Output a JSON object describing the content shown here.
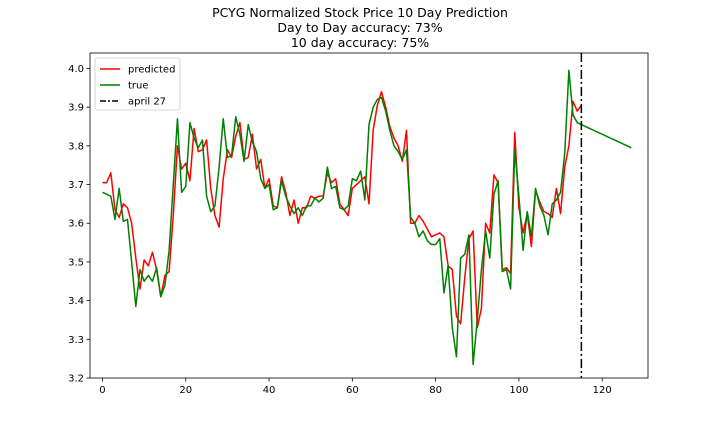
{
  "chart_data": {
    "type": "line",
    "title_lines": [
      "PCYG Normalized Stock Price 10 Day Prediction",
      "Day to Day accuracy: 73%",
      "10 day accuracy: 75%"
    ],
    "xlabel": "",
    "ylabel": "",
    "xlim": [
      -3,
      131
    ],
    "ylim": [
      3.2,
      4.04
    ],
    "x_ticks": [
      0,
      20,
      40,
      60,
      80,
      100,
      120
    ],
    "y_ticks": [
      3.2,
      3.3,
      3.4,
      3.5,
      3.6,
      3.7,
      3.8,
      3.9,
      4.0
    ],
    "y_tick_labels": [
      "3.2",
      "3.3",
      "3.4",
      "3.5",
      "3.6",
      "3.7",
      "3.8",
      "3.9",
      "4.0"
    ],
    "grid": false,
    "legend_position": "top-left",
    "series": [
      {
        "name": "predicted",
        "color": "#ff0000",
        "style": "solid",
        "x_start": 0,
        "values": [
          3.705,
          3.705,
          3.73,
          3.635,
          3.615,
          3.65,
          3.64,
          3.6,
          3.51,
          3.43,
          3.505,
          3.49,
          3.525,
          3.48,
          3.41,
          3.465,
          3.475,
          3.62,
          3.8,
          3.74,
          3.755,
          3.71,
          3.845,
          3.785,
          3.79,
          3.815,
          3.69,
          3.62,
          3.59,
          3.715,
          3.79,
          3.77,
          3.825,
          3.86,
          3.765,
          3.77,
          3.83,
          3.74,
          3.765,
          3.69,
          3.715,
          3.645,
          3.64,
          3.72,
          3.68,
          3.62,
          3.66,
          3.6,
          3.64,
          3.64,
          3.67,
          3.665,
          3.67,
          3.67,
          3.73,
          3.705,
          3.715,
          3.65,
          3.635,
          3.62,
          3.69,
          3.7,
          3.71,
          3.72,
          3.65,
          3.84,
          3.905,
          3.94,
          3.9,
          3.85,
          3.82,
          3.8,
          3.76,
          3.84,
          3.6,
          3.6,
          3.62,
          3.605,
          3.585,
          3.565,
          3.57,
          3.575,
          3.565,
          3.49,
          3.48,
          3.36,
          3.34,
          3.46,
          3.56,
          3.58,
          3.33,
          3.38,
          3.6,
          3.575,
          3.725,
          3.705,
          3.48,
          3.485,
          3.47,
          3.835,
          3.64,
          3.575,
          3.625,
          3.54,
          3.685,
          3.655,
          3.63,
          3.625,
          3.615,
          3.69,
          3.625,
          3.745,
          3.8,
          3.915,
          3.89,
          3.905
        ]
      },
      {
        "name": "true",
        "color": "#008000",
        "style": "solid",
        "x_start": 0,
        "values": [
          3.68,
          3.675,
          3.67,
          3.61,
          3.69,
          3.605,
          3.61,
          3.5,
          3.385,
          3.48,
          3.45,
          3.465,
          3.45,
          3.485,
          3.41,
          3.44,
          3.53,
          3.7,
          3.87,
          3.68,
          3.695,
          3.86,
          3.82,
          3.795,
          3.815,
          3.67,
          3.63,
          3.645,
          3.745,
          3.87,
          3.77,
          3.775,
          3.875,
          3.83,
          3.76,
          3.855,
          3.81,
          3.785,
          3.715,
          3.69,
          3.7,
          3.635,
          3.64,
          3.71,
          3.67,
          3.645,
          3.625,
          3.64,
          3.62,
          3.645,
          3.645,
          3.665,
          3.655,
          3.665,
          3.745,
          3.69,
          3.695,
          3.64,
          3.635,
          3.645,
          3.715,
          3.71,
          3.735,
          3.66,
          3.855,
          3.9,
          3.92,
          3.925,
          3.89,
          3.84,
          3.8,
          3.785,
          3.765,
          3.79,
          3.615,
          3.6,
          3.565,
          3.58,
          3.555,
          3.545,
          3.545,
          3.56,
          3.42,
          3.49,
          3.33,
          3.255,
          3.51,
          3.52,
          3.57,
          3.235,
          3.35,
          3.48,
          3.58,
          3.51,
          3.675,
          3.71,
          3.475,
          3.48,
          3.43,
          3.79,
          3.67,
          3.53,
          3.63,
          3.565,
          3.69,
          3.645,
          3.62,
          3.57,
          3.65,
          3.66,
          3.68,
          3.78,
          3.995,
          3.88,
          3.86,
          3.855,
          3.85,
          3.845,
          3.84,
          3.835,
          3.83,
          3.825,
          3.82,
          3.815,
          3.81,
          3.805,
          3.8,
          3.795
        ]
      },
      {
        "name": "april 27",
        "color": "#000000",
        "style": "dashdot",
        "vline_x": 115
      }
    ]
  }
}
